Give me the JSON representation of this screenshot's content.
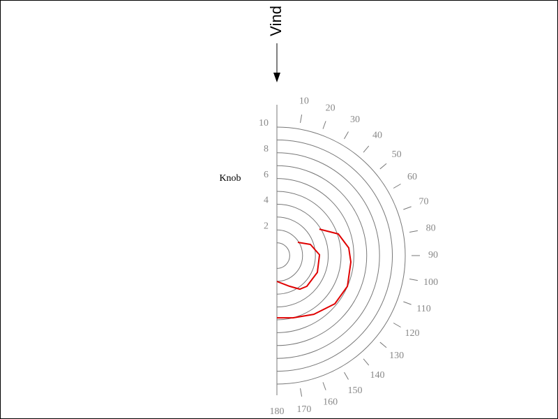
{
  "chart_data": {
    "type": "polar",
    "title": "Vind",
    "r_label": "Knob",
    "thetaticks": [
      10,
      20,
      30,
      40,
      50,
      60,
      70,
      80,
      90,
      100,
      110,
      120,
      130,
      140,
      150,
      160,
      170,
      180
    ],
    "rlim": [
      0,
      10
    ],
    "rticks": [
      2,
      4,
      6,
      8,
      10
    ],
    "rgrid": [
      1,
      2,
      3,
      4,
      5,
      6,
      7,
      8,
      9,
      10
    ],
    "series": [
      {
        "color": "#e00000",
        "theta": [
          57.7,
          71.6,
          89,
          112.5,
          135.7,
          145.5,
          157.7,
          180
        ],
        "values": [
          1.93,
          2.75,
          3.32,
          3.41,
          3.34,
          3.17,
          2.58,
          2.01
        ]
      },
      {
        "color": "#e00000",
        "theta": [
          58.1,
          70.6,
          83.9,
          94.9,
          113.5,
          129.7,
          147.8,
          165.5,
          180
        ],
        "values": [
          3.9,
          5.07,
          5.63,
          5.78,
          5.99,
          5.87,
          5.4,
          5.0,
          4.84
        ]
      }
    ]
  }
}
